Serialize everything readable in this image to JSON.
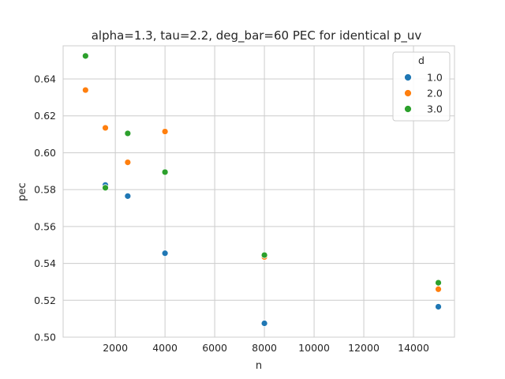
{
  "chart_data": {
    "type": "scatter",
    "title": "alpha=1.3, tau=2.2, deg_bar=60 PEC for identical p_uv",
    "xlabel": "n",
    "ylabel": "pec",
    "xlim": [
      -100,
      15650
    ],
    "ylim": [
      0.5,
      0.658
    ],
    "xticks": [
      2000,
      4000,
      6000,
      8000,
      10000,
      12000,
      14000
    ],
    "yticks": [
      0.5,
      0.52,
      0.54,
      0.56,
      0.58,
      0.6,
      0.62,
      0.64
    ],
    "xtick_labels": [
      "2000",
      "4000",
      "6000",
      "8000",
      "10000",
      "12000",
      "14000"
    ],
    "ytick_labels": [
      "0.50",
      "0.52",
      "0.54",
      "0.56",
      "0.58",
      "0.60",
      "0.62",
      "0.64"
    ],
    "grid": true,
    "legend": {
      "title": "d",
      "position": "top-right"
    },
    "series": [
      {
        "name": "1.0",
        "color": "#1f77b4",
        "points": [
          [
            800,
            0.634
          ],
          [
            1600,
            0.5825
          ],
          [
            2500,
            0.5765
          ],
          [
            4000,
            0.5455
          ],
          [
            8000,
            0.5075
          ],
          [
            15000,
            0.5165
          ]
        ]
      },
      {
        "name": "2.0",
        "color": "#ff7f0e",
        "points": [
          [
            800,
            0.634
          ],
          [
            1600,
            0.6135
          ],
          [
            2500,
            0.5948
          ],
          [
            4000,
            0.6115
          ],
          [
            8000,
            0.5435
          ],
          [
            15000,
            0.526
          ]
        ]
      },
      {
        "name": "3.0",
        "color": "#2ca02c",
        "points": [
          [
            800,
            0.6525
          ],
          [
            1600,
            0.581
          ],
          [
            2500,
            0.6105
          ],
          [
            4000,
            0.5895
          ],
          [
            8000,
            0.5445
          ],
          [
            15000,
            0.5295
          ]
        ]
      }
    ]
  }
}
